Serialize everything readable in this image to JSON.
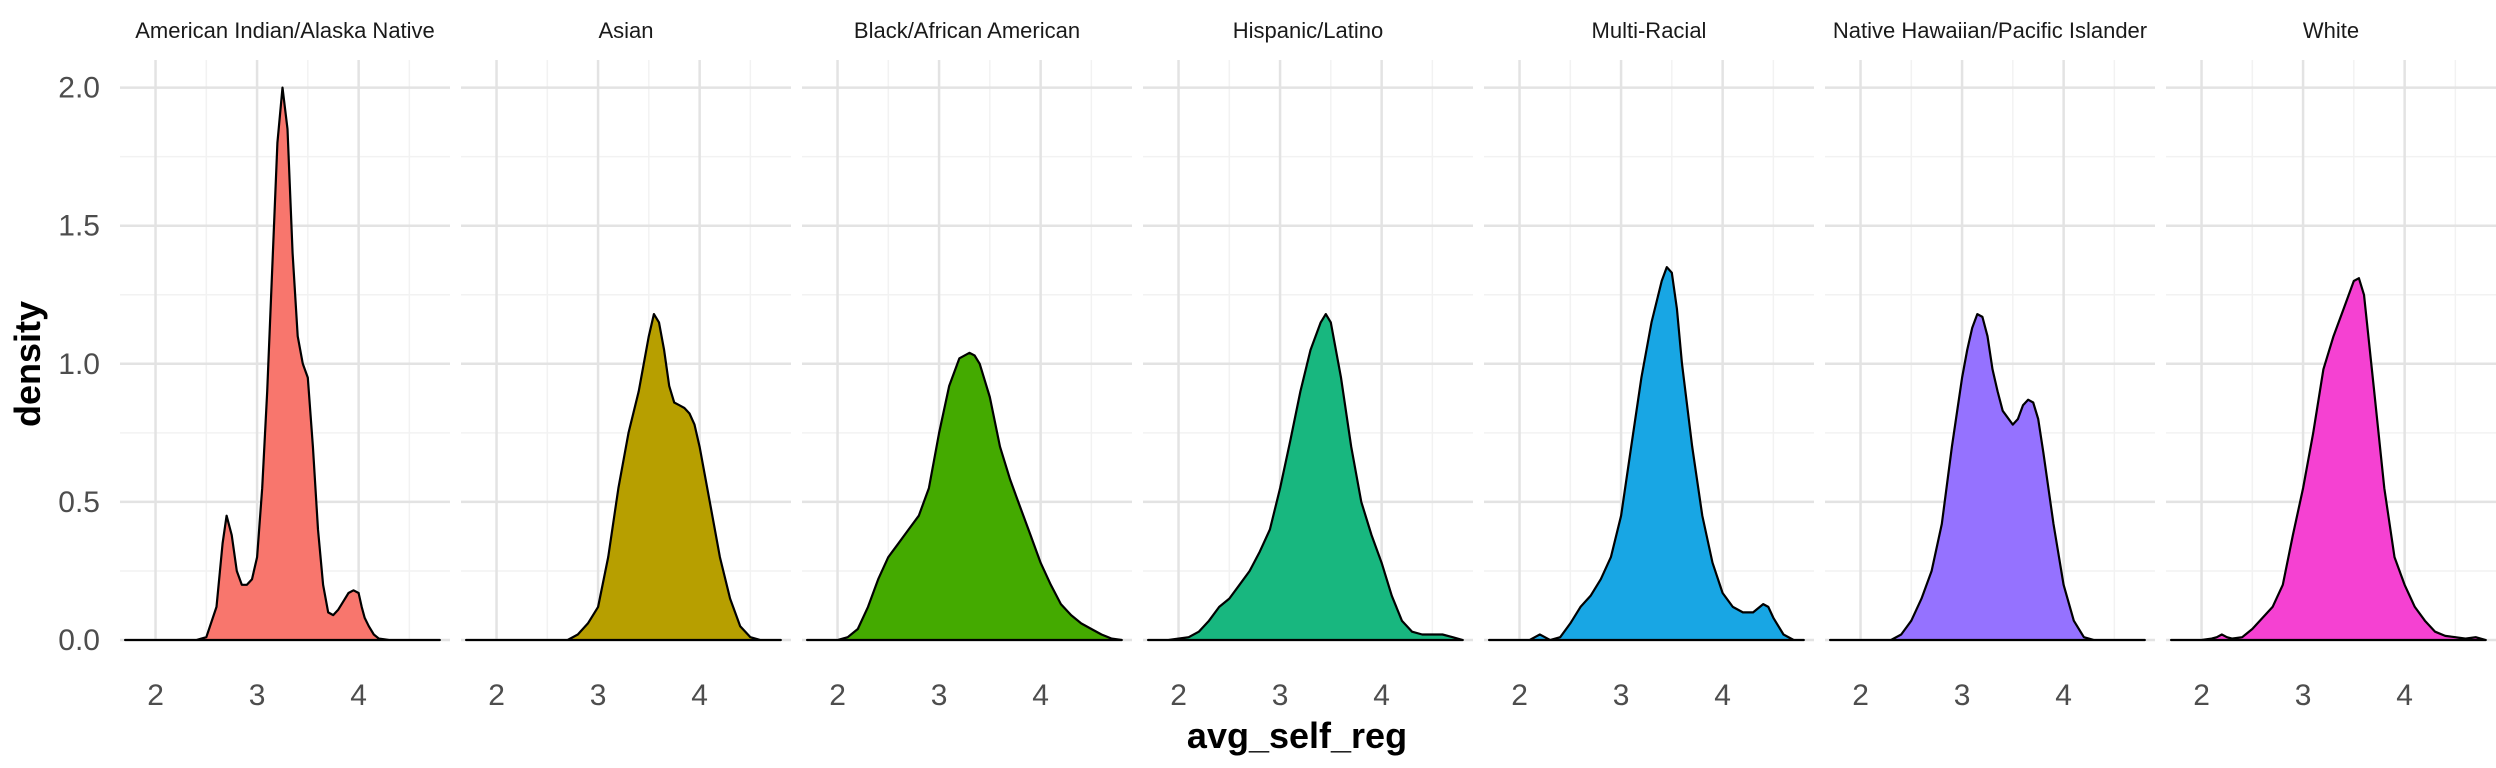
{
  "chart_data": {
    "type": "area",
    "facets": [
      {
        "name": "American Indian/Alaska Native",
        "color": "#F8766D"
      },
      {
        "name": "Asian",
        "color": "#B79F00"
      },
      {
        "name": "Black/African American",
        "color": "#44AA00"
      },
      {
        "name": "Hispanic/Latino",
        "color": "#18B77F"
      },
      {
        "name": "Multi-Racial",
        "color": "#18A6E4"
      },
      {
        "name": "Native Hawaiian/Pacific Islander",
        "color": "#9572FF"
      },
      {
        "name": "White",
        "color": "#F541D2"
      }
    ],
    "xlabel": "avg_self_reg",
    "ylabel": "density",
    "x_ticks": [
      "2",
      "3",
      "4"
    ],
    "y_ticks": [
      "0.0",
      "0.5",
      "1.0",
      "1.5",
      "2.0"
    ],
    "xlim": [
      1.65,
      4.9
    ],
    "ylim": [
      0,
      2.1
    ],
    "series": [
      {
        "name": "American Indian/Alaska Native",
        "x": [
          1.7,
          2.4,
          2.5,
          2.6,
          2.66,
          2.7,
          2.75,
          2.8,
          2.85,
          2.9,
          2.95,
          3.0,
          3.05,
          3.1,
          3.15,
          3.2,
          3.25,
          3.3,
          3.35,
          3.4,
          3.45,
          3.5,
          3.55,
          3.6,
          3.65,
          3.7,
          3.75,
          3.8,
          3.85,
          3.9,
          3.95,
          4.0,
          4.03,
          4.06,
          4.1,
          4.15,
          4.2,
          4.3,
          4.4,
          4.8
        ],
        "y": [
          0.0,
          0.0,
          0.01,
          0.12,
          0.35,
          0.45,
          0.38,
          0.25,
          0.2,
          0.2,
          0.22,
          0.3,
          0.55,
          0.9,
          1.35,
          1.8,
          2.0,
          1.85,
          1.4,
          1.1,
          1.0,
          0.95,
          0.7,
          0.4,
          0.2,
          0.1,
          0.09,
          0.11,
          0.14,
          0.17,
          0.18,
          0.17,
          0.12,
          0.08,
          0.05,
          0.02,
          0.005,
          0.0,
          0.0,
          0.0
        ]
      },
      {
        "name": "Asian",
        "x": [
          1.7,
          2.7,
          2.8,
          2.9,
          3.0,
          3.1,
          3.2,
          3.3,
          3.4,
          3.5,
          3.55,
          3.6,
          3.65,
          3.7,
          3.75,
          3.8,
          3.85,
          3.9,
          3.95,
          4.0,
          4.05,
          4.1,
          4.2,
          4.3,
          4.4,
          4.5,
          4.6,
          4.8
        ],
        "y": [
          0.0,
          0.0,
          0.02,
          0.06,
          0.12,
          0.3,
          0.55,
          0.75,
          0.9,
          1.1,
          1.18,
          1.15,
          1.05,
          0.92,
          0.86,
          0.85,
          0.84,
          0.82,
          0.78,
          0.7,
          0.6,
          0.5,
          0.3,
          0.15,
          0.05,
          0.01,
          0.0,
          0.0
        ]
      },
      {
        "name": "Black/African American",
        "x": [
          1.7,
          2.0,
          2.1,
          2.2,
          2.3,
          2.4,
          2.5,
          2.6,
          2.7,
          2.8,
          2.9,
          3.0,
          3.1,
          3.2,
          3.3,
          3.35,
          3.4,
          3.5,
          3.6,
          3.7,
          3.8,
          3.9,
          4.0,
          4.1,
          4.2,
          4.3,
          4.4,
          4.5,
          4.6,
          4.7,
          4.8
        ],
        "y": [
          0.0,
          0.0,
          0.01,
          0.04,
          0.12,
          0.22,
          0.3,
          0.35,
          0.4,
          0.45,
          0.55,
          0.75,
          0.92,
          1.02,
          1.04,
          1.03,
          1.0,
          0.88,
          0.7,
          0.58,
          0.48,
          0.38,
          0.28,
          0.2,
          0.13,
          0.09,
          0.06,
          0.04,
          0.02,
          0.005,
          0.0
        ]
      },
      {
        "name": "Hispanic/Latino",
        "x": [
          1.7,
          1.9,
          2.0,
          2.1,
          2.2,
          2.3,
          2.4,
          2.5,
          2.6,
          2.7,
          2.8,
          2.9,
          3.0,
          3.1,
          3.2,
          3.3,
          3.4,
          3.45,
          3.5,
          3.6,
          3.7,
          3.8,
          3.9,
          4.0,
          4.1,
          4.2,
          4.3,
          4.4,
          4.5,
          4.6,
          4.7,
          4.8
        ],
        "y": [
          0.0,
          0.0,
          0.005,
          0.01,
          0.03,
          0.07,
          0.12,
          0.15,
          0.2,
          0.25,
          0.32,
          0.4,
          0.55,
          0.72,
          0.9,
          1.05,
          1.15,
          1.18,
          1.15,
          0.95,
          0.7,
          0.5,
          0.38,
          0.28,
          0.16,
          0.07,
          0.03,
          0.02,
          0.02,
          0.02,
          0.01,
          0.0
        ]
      },
      {
        "name": "Multi-Racial",
        "x": [
          1.7,
          2.1,
          2.15,
          2.2,
          2.25,
          2.3,
          2.4,
          2.5,
          2.6,
          2.7,
          2.8,
          2.9,
          3.0,
          3.1,
          3.2,
          3.3,
          3.4,
          3.45,
          3.5,
          3.55,
          3.6,
          3.7,
          3.8,
          3.9,
          4.0,
          4.1,
          4.2,
          4.3,
          4.4,
          4.45,
          4.5,
          4.6,
          4.7,
          4.8
        ],
        "y": [
          0.0,
          0.0,
          0.01,
          0.02,
          0.01,
          0.0,
          0.01,
          0.06,
          0.12,
          0.16,
          0.22,
          0.3,
          0.45,
          0.7,
          0.95,
          1.15,
          1.3,
          1.35,
          1.33,
          1.2,
          1.0,
          0.7,
          0.45,
          0.28,
          0.17,
          0.12,
          0.1,
          0.1,
          0.13,
          0.12,
          0.08,
          0.02,
          0.0,
          0.0
        ]
      },
      {
        "name": "Native Hawaiian/Pacific Islander",
        "x": [
          1.7,
          2.3,
          2.4,
          2.5,
          2.6,
          2.7,
          2.8,
          2.9,
          3.0,
          3.05,
          3.1,
          3.15,
          3.2,
          3.25,
          3.3,
          3.35,
          3.4,
          3.5,
          3.55,
          3.6,
          3.65,
          3.7,
          3.75,
          3.8,
          3.9,
          4.0,
          4.1,
          4.2,
          4.3,
          4.8
        ],
        "y": [
          0.0,
          0.0,
          0.02,
          0.07,
          0.15,
          0.25,
          0.42,
          0.7,
          0.95,
          1.05,
          1.13,
          1.18,
          1.17,
          1.1,
          0.98,
          0.9,
          0.83,
          0.78,
          0.8,
          0.85,
          0.87,
          0.86,
          0.8,
          0.68,
          0.42,
          0.2,
          0.07,
          0.01,
          0.0,
          0.0
        ]
      },
      {
        "name": "White",
        "x": [
          1.7,
          2.0,
          2.1,
          2.15,
          2.2,
          2.25,
          2.3,
          2.4,
          2.5,
          2.6,
          2.7,
          2.8,
          2.9,
          3.0,
          3.1,
          3.2,
          3.3,
          3.4,
          3.5,
          3.55,
          3.6,
          3.7,
          3.8,
          3.9,
          4.0,
          4.1,
          4.2,
          4.3,
          4.4,
          4.5,
          4.6,
          4.7,
          4.8
        ],
        "y": [
          0.0,
          0.0,
          0.005,
          0.01,
          0.02,
          0.01,
          0.005,
          0.01,
          0.04,
          0.08,
          0.12,
          0.2,
          0.38,
          0.55,
          0.75,
          0.98,
          1.1,
          1.2,
          1.3,
          1.31,
          1.25,
          0.9,
          0.55,
          0.3,
          0.2,
          0.12,
          0.07,
          0.03,
          0.015,
          0.01,
          0.005,
          0.01,
          0.0
        ]
      }
    ]
  }
}
